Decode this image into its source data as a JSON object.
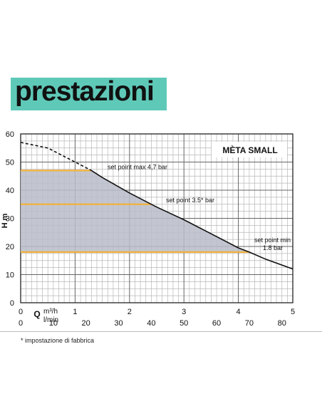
{
  "header": {
    "title": "prestazioni"
  },
  "footnote": "* impostazione di fabbrica",
  "colors": {
    "header_bg": "#5fc9b8",
    "set_point_line": "#f2b13c",
    "area_fill": "#b9bcc9",
    "curve": "#111111",
    "grid_minor": "#b8b8b8",
    "grid_major": "#666666"
  },
  "chart_data": {
    "type": "line",
    "title": "MÈTA SMALL",
    "ylabel": "H m",
    "xlabel": "Q",
    "x_unit_primary": "m³/h",
    "x_unit_secondary": "l/min",
    "xlim": [
      0,
      5
    ],
    "ylim": [
      0,
      60
    ],
    "x_ticks": [
      "0",
      "1",
      "2",
      "3",
      "4",
      "5"
    ],
    "x2_ticks": [
      "0",
      "10",
      "20",
      "30",
      "40",
      "50",
      "60",
      "70",
      "80"
    ],
    "y_ticks": [
      "0",
      "10",
      "20",
      "30",
      "40",
      "50",
      "60"
    ],
    "grid": true,
    "curve_dashed": [
      {
        "x": 0.0,
        "y": 57.0
      },
      {
        "x": 0.5,
        "y": 55.0
      },
      {
        "x": 1.0,
        "y": 50.0
      },
      {
        "x": 1.3,
        "y": 47.0
      }
    ],
    "curve_solid": [
      {
        "x": 1.3,
        "y": 47.0
      },
      {
        "x": 1.5,
        "y": 44.5
      },
      {
        "x": 2.0,
        "y": 39.0
      },
      {
        "x": 2.5,
        "y": 34.0
      },
      {
        "x": 3.0,
        "y": 29.5
      },
      {
        "x": 3.5,
        "y": 24.5
      },
      {
        "x": 4.0,
        "y": 19.5
      },
      {
        "x": 4.2,
        "y": 18.0
      },
      {
        "x": 4.5,
        "y": 15.5
      },
      {
        "x": 5.0,
        "y": 12.0
      }
    ],
    "set_points": [
      {
        "label": "set point max 4,7 bar",
        "y": 47,
        "x_end": 1.3
      },
      {
        "label": "set point 3.5* bar",
        "y": 35,
        "x_end": 2.4
      },
      {
        "label": "set point min",
        "label2": "1.8 bar",
        "y": 18,
        "x_end": 4.2
      }
    ]
  }
}
